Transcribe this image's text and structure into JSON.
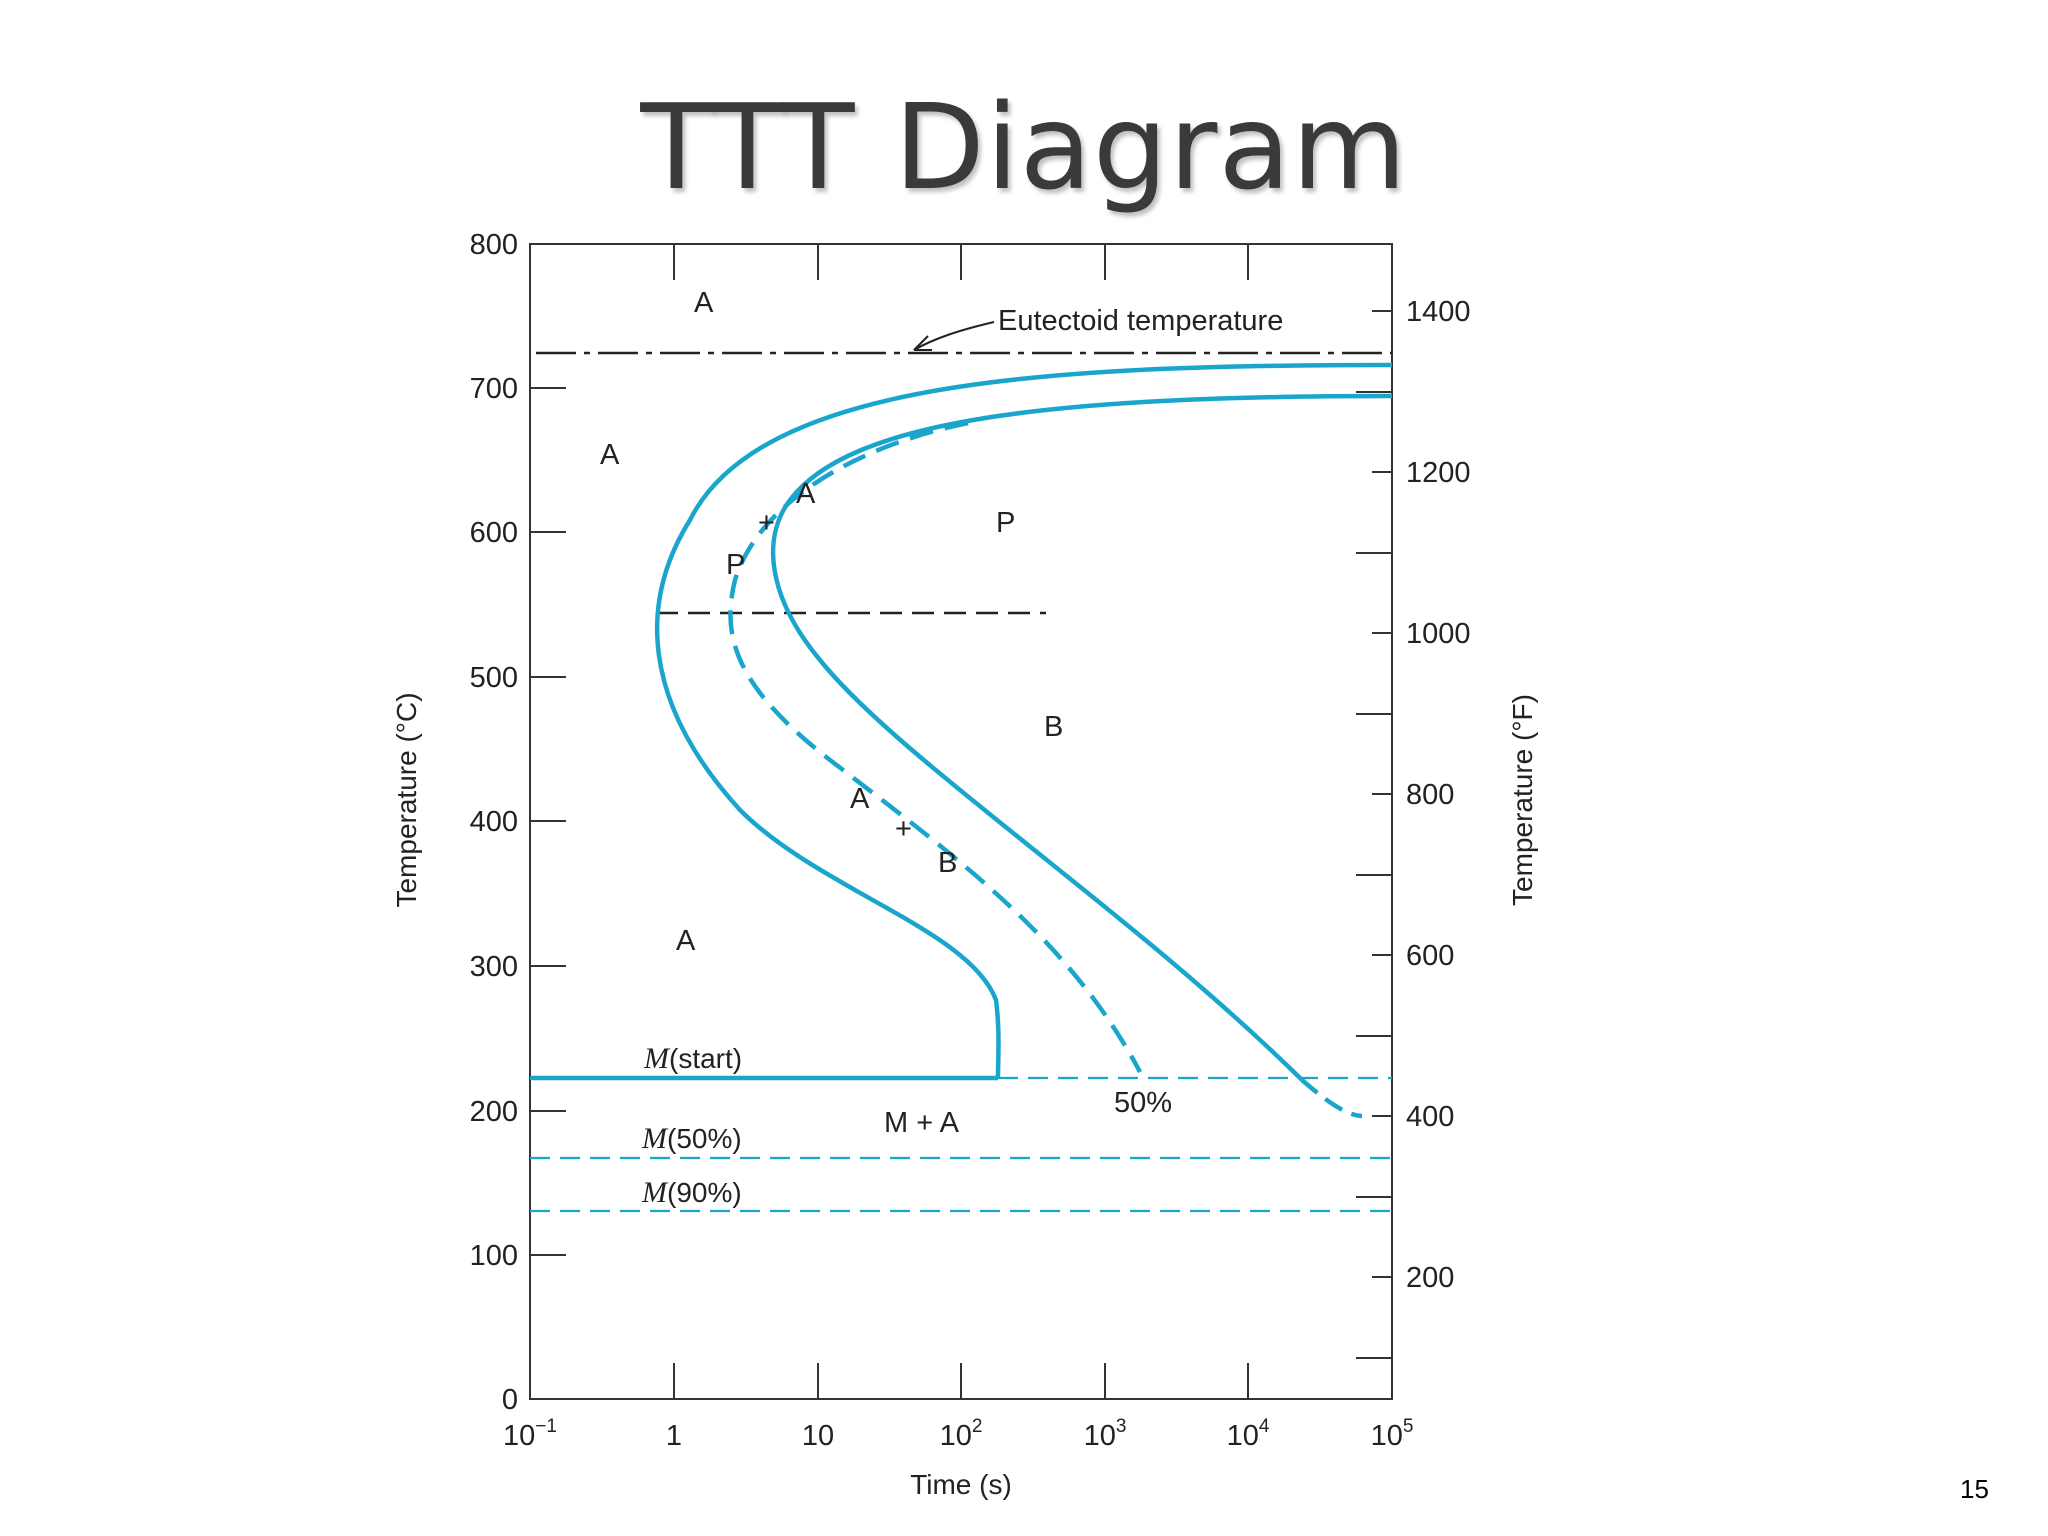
{
  "title": "TTT Diagram",
  "page_number": "15",
  "diagram": {
    "y_axis_left": {
      "title": "Temperature (°C)",
      "ticks": [
        "0",
        "100",
        "200",
        "300",
        "400",
        "500",
        "600",
        "700",
        "800"
      ]
    },
    "y_axis_right": {
      "title": "Temperature (°F)",
      "ticks": [
        "200",
        "400",
        "600",
        "800",
        "1000",
        "1200",
        "1400"
      ]
    },
    "x_axis": {
      "title": "Time (s)",
      "ticks": [
        {
          "base": "10",
          "exp": "−1"
        },
        {
          "base": "1",
          "exp": ""
        },
        {
          "base": "10",
          "exp": ""
        },
        {
          "base": "10",
          "exp": "2"
        },
        {
          "base": "10",
          "exp": "3"
        },
        {
          "base": "10",
          "exp": "4"
        },
        {
          "base": "10",
          "exp": "5"
        }
      ]
    },
    "eutectoid_label": "Eutectoid temperature",
    "regions": {
      "a_top": "A",
      "a_left": "A",
      "a_plus": "A",
      "plus_upper": "+",
      "p_left": "P",
      "p_right": "P",
      "b_right": "B",
      "a_mid": "A",
      "plus_mid": "+",
      "b_mid": "B",
      "a_low": "A",
      "m_plus_a": "M + A",
      "fifty_percent": "50%"
    },
    "martensite": {
      "start": {
        "symbol": "M",
        "text": "(start)"
      },
      "m50": {
        "symbol": "M",
        "text": "(50%)"
      },
      "m90": {
        "symbol": "M",
        "text": "(90%)"
      }
    },
    "colors": {
      "curve": "#1aa6cc",
      "dashed_isotherm": "#1aa6cc",
      "frame": "#333333",
      "eutectoid_line": "#222222"
    }
  }
}
